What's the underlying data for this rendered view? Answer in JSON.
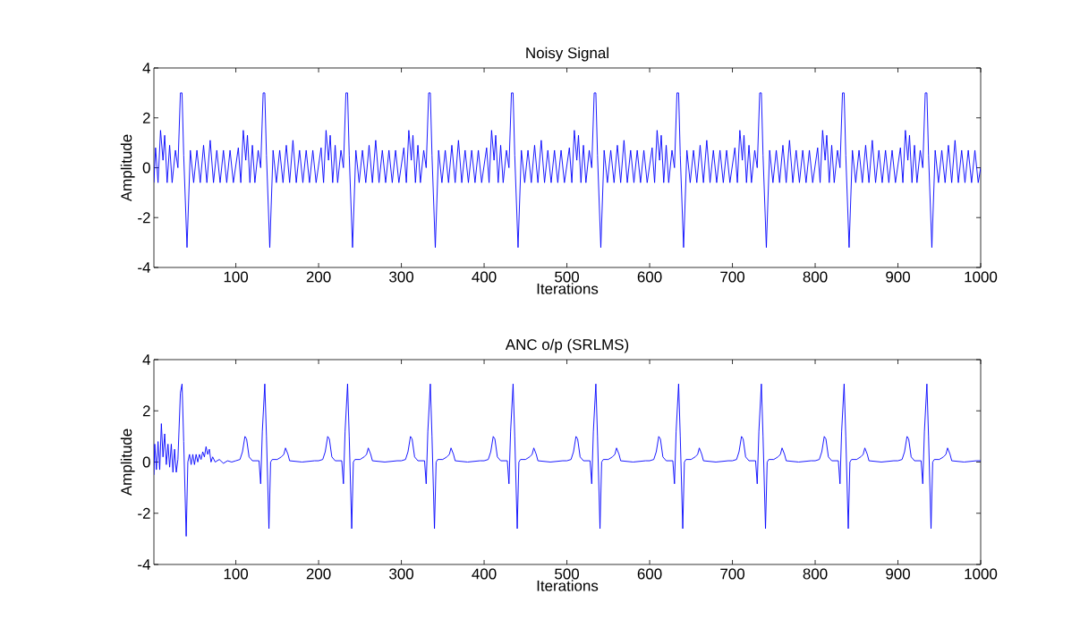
{
  "chart_data": [
    {
      "type": "line",
      "title": "Noisy Signal",
      "xlabel": "Iterations",
      "ylabel": "Amplitude",
      "color": "#0000ff",
      "xlim": [
        1,
        1000
      ],
      "ylim": [
        -4,
        4
      ],
      "xticks": [
        100,
        200,
        300,
        400,
        500,
        600,
        700,
        800,
        900,
        1000
      ],
      "yticks": [
        -4,
        -2,
        0,
        2,
        4
      ],
      "x": [
        1,
        3,
        6,
        9,
        12,
        14,
        17,
        20,
        23,
        27,
        30,
        33,
        35,
        37,
        41,
        45,
        49,
        53,
        57,
        61,
        65,
        69,
        73,
        77,
        81,
        85,
        89,
        93,
        97,
        103,
        106,
        109,
        112,
        114,
        117,
        120,
        123,
        127,
        130,
        133,
        135,
        137,
        141,
        145,
        149,
        153,
        157,
        161,
        165,
        169,
        173,
        177,
        181,
        185,
        189,
        193,
        197,
        203,
        206,
        209,
        212,
        214,
        217,
        220,
        223,
        227,
        230,
        233,
        235,
        237,
        241,
        245,
        249,
        253,
        257,
        261,
        265,
        269,
        273,
        277,
        281,
        285,
        289,
        293,
        297,
        303,
        306,
        309,
        312,
        314,
        317,
        320,
        323,
        327,
        330,
        333,
        335,
        337,
        341,
        345,
        349,
        353,
        357,
        361,
        365,
        369,
        373,
        377,
        381,
        385,
        389,
        393,
        397,
        403,
        406,
        409,
        412,
        414,
        417,
        420,
        423,
        427,
        430,
        433,
        435,
        437,
        441,
        445,
        449,
        453,
        457,
        461,
        465,
        469,
        473,
        477,
        481,
        485,
        489,
        493,
        497,
        503,
        506,
        509,
        512,
        514,
        517,
        520,
        523,
        527,
        530,
        533,
        535,
        537,
        541,
        545,
        549,
        553,
        557,
        561,
        565,
        569,
        573,
        577,
        581,
        585,
        589,
        593,
        597,
        603,
        606,
        609,
        612,
        614,
        617,
        620,
        623,
        627,
        630,
        633,
        635,
        637,
        641,
        645,
        649,
        653,
        657,
        661,
        665,
        669,
        673,
        677,
        681,
        685,
        689,
        693,
        697,
        703,
        706,
        709,
        712,
        714,
        717,
        720,
        723,
        727,
        730,
        733,
        735,
        737,
        741,
        745,
        749,
        753,
        757,
        761,
        765,
        769,
        773,
        777,
        781,
        785,
        789,
        793,
        797,
        803,
        806,
        809,
        812,
        814,
        817,
        820,
        823,
        827,
        830,
        833,
        835,
        837,
        841,
        845,
        849,
        853,
        857,
        861,
        865,
        869,
        873,
        877,
        881,
        885,
        889,
        893,
        897,
        903,
        906,
        909,
        912,
        914,
        917,
        920,
        923,
        927,
        930,
        933,
        935,
        937,
        941,
        945,
        949,
        953,
        957,
        961,
        965,
        969,
        973,
        977,
        981,
        985,
        989,
        993,
        997,
        1000
      ],
      "values": [
        -0.6,
        0.8,
        -0.6,
        1.5,
        0.3,
        1.3,
        -0.6,
        0.9,
        -0.6,
        0.7,
        0.0,
        3.0,
        3.0,
        0.5,
        -3.2,
        0.7,
        -0.6,
        0.7,
        -0.6,
        0.9,
        -0.6,
        1.1,
        -0.6,
        0.7,
        -0.6,
        0.7,
        -0.6,
        0.7,
        -0.6,
        0.8,
        -0.6,
        1.5,
        0.3,
        1.3,
        -0.6,
        0.9,
        -0.6,
        0.7,
        0.0,
        3.0,
        3.0,
        0.5,
        -3.2,
        0.7,
        -0.6,
        0.7,
        -0.6,
        0.9,
        -0.6,
        1.1,
        -0.6,
        0.7,
        -0.6,
        0.7,
        -0.6,
        0.7,
        -0.6,
        0.8,
        -0.6,
        1.5,
        0.3,
        1.3,
        -0.6,
        0.9,
        -0.6,
        0.7,
        0.0,
        3.0,
        3.0,
        0.5,
        -3.2,
        0.7,
        -0.6,
        0.7,
        -0.6,
        0.9,
        -0.6,
        1.1,
        -0.6,
        0.7,
        -0.6,
        0.7,
        -0.6,
        0.7,
        -0.6,
        0.8,
        -0.6,
        1.5,
        0.3,
        1.3,
        -0.6,
        0.9,
        -0.6,
        0.7,
        0.0,
        3.0,
        3.0,
        0.5,
        -3.2,
        0.7,
        -0.6,
        0.7,
        -0.6,
        0.9,
        -0.6,
        1.1,
        -0.6,
        0.7,
        -0.6,
        0.7,
        -0.6,
        0.7,
        -0.6,
        0.8,
        -0.6,
        1.5,
        0.3,
        1.3,
        -0.6,
        0.9,
        -0.6,
        0.7,
        0.0,
        3.0,
        3.0,
        0.5,
        -3.2,
        0.7,
        -0.6,
        0.7,
        -0.6,
        0.9,
        -0.6,
        1.1,
        -0.6,
        0.7,
        -0.6,
        0.7,
        -0.6,
        0.7,
        -0.6,
        0.8,
        -0.6,
        1.5,
        0.3,
        1.3,
        -0.6,
        0.9,
        -0.6,
        0.7,
        0.0,
        3.0,
        3.0,
        0.5,
        -3.2,
        0.7,
        -0.6,
        0.7,
        -0.6,
        0.9,
        -0.6,
        1.1,
        -0.6,
        0.7,
        -0.6,
        0.7,
        -0.6,
        0.7,
        -0.6,
        0.8,
        -0.6,
        1.5,
        0.3,
        1.3,
        -0.6,
        0.9,
        -0.6,
        0.7,
        0.0,
        3.0,
        3.0,
        0.5,
        -3.2,
        0.7,
        -0.6,
        0.7,
        -0.6,
        0.9,
        -0.6,
        1.1,
        -0.6,
        0.7,
        -0.6,
        0.7,
        -0.6,
        0.7,
        -0.6,
        0.8,
        -0.6,
        1.5,
        0.3,
        1.3,
        -0.6,
        0.9,
        -0.6,
        0.7,
        0.0,
        3.0,
        3.0,
        0.5,
        -3.2,
        0.7,
        -0.6,
        0.7,
        -0.6,
        0.9,
        -0.6,
        1.1,
        -0.6,
        0.7,
        -0.6,
        0.7,
        -0.6,
        0.7,
        -0.6,
        0.8,
        -0.6,
        1.5,
        0.3,
        1.3,
        -0.6,
        0.9,
        -0.6,
        0.7,
        0.0,
        3.0,
        3.0,
        0.5,
        -3.2,
        0.7,
        -0.6,
        0.7,
        -0.6,
        0.9,
        -0.6,
        1.1,
        -0.6,
        0.7,
        -0.6,
        0.7,
        -0.6,
        0.7,
        -0.6,
        0.8,
        -0.6,
        1.5,
        0.3,
        1.3,
        -0.6,
        0.9,
        -0.6,
        0.7,
        0.0,
        3.0,
        3.0,
        0.5,
        -3.2,
        0.7,
        -0.6,
        0.7,
        -0.6,
        0.9,
        -0.6,
        1.1,
        -0.6,
        0.7,
        -0.6,
        0.7,
        -0.6,
        0.7,
        -0.6,
        0.0
      ]
    },
    {
      "type": "line",
      "title": "ANC o/p (SRLMS)",
      "xlabel": "Iterations",
      "ylabel": "Amplitude",
      "color": "#0000ff",
      "xlim": [
        1,
        1000
      ],
      "ylim": [
        -4,
        4
      ],
      "xticks": [
        100,
        200,
        300,
        400,
        500,
        600,
        700,
        800,
        900,
        1000
      ],
      "yticks": [
        -4,
        -2,
        0,
        2,
        4
      ],
      "x": [
        1,
        2,
        4,
        6,
        8,
        10,
        12,
        14,
        16,
        18,
        20,
        22,
        24,
        26,
        28,
        30,
        33,
        35,
        37,
        40,
        42,
        44,
        46,
        48,
        50,
        52,
        54,
        56,
        58,
        60,
        62,
        64,
        66,
        68,
        70,
        72,
        75,
        80,
        85,
        90,
        95,
        100,
        105,
        108,
        111,
        113,
        116,
        120,
        128,
        130,
        132,
        135,
        137,
        140,
        142,
        144,
        150,
        155,
        158,
        160,
        163,
        165,
        180,
        195,
        200,
        205,
        208,
        211,
        213,
        216,
        220,
        228,
        230,
        232,
        235,
        237,
        240,
        242,
        244,
        250,
        255,
        258,
        260,
        263,
        265,
        280,
        295,
        300,
        305,
        308,
        311,
        313,
        316,
        320,
        328,
        330,
        332,
        335,
        337,
        340,
        342,
        344,
        350,
        355,
        358,
        360,
        363,
        365,
        380,
        395,
        400,
        405,
        408,
        411,
        413,
        416,
        420,
        428,
        430,
        432,
        435,
        437,
        440,
        442,
        444,
        450,
        455,
        458,
        460,
        463,
        465,
        480,
        495,
        500,
        505,
        508,
        511,
        513,
        516,
        520,
        528,
        530,
        532,
        535,
        537,
        540,
        542,
        544,
        550,
        555,
        558,
        560,
        563,
        565,
        580,
        595,
        600,
        605,
        608,
        611,
        613,
        616,
        620,
        628,
        630,
        632,
        635,
        637,
        640,
        642,
        644,
        650,
        655,
        658,
        660,
        663,
        665,
        680,
        695,
        700,
        705,
        708,
        711,
        713,
        716,
        720,
        728,
        730,
        732,
        735,
        737,
        740,
        742,
        744,
        750,
        755,
        758,
        760,
        763,
        765,
        780,
        795,
        800,
        805,
        808,
        811,
        813,
        816,
        820,
        828,
        830,
        832,
        835,
        837,
        840,
        842,
        844,
        850,
        855,
        858,
        860,
        863,
        865,
        880,
        895,
        900,
        905,
        908,
        911,
        913,
        916,
        920,
        928,
        930,
        932,
        935,
        937,
        940,
        942,
        944,
        950,
        955,
        958,
        960,
        963,
        965,
        980,
        995,
        1000
      ],
      "values": [
        -0.5,
        0.7,
        -0.3,
        0.8,
        -0.3,
        1.5,
        0.2,
        1.1,
        -0.1,
        0.7,
        -0.2,
        0.7,
        -0.4,
        0.5,
        -0.4,
        0.1,
        2.7,
        3.05,
        0.8,
        -2.9,
        0.0,
        0.3,
        -0.1,
        0.3,
        -0.1,
        0.3,
        0.0,
        0.3,
        0.1,
        0.4,
        0.2,
        0.6,
        0.3,
        0.5,
        0.0,
        0.2,
        0.0,
        0.1,
        -0.05,
        0.05,
        0.0,
        0.05,
        0.1,
        0.4,
        1.0,
        0.9,
        0.2,
        0.05,
        0.05,
        -0.85,
        1.2,
        3.05,
        1.0,
        -2.6,
        0.0,
        0.1,
        0.1,
        0.2,
        0.3,
        0.55,
        0.3,
        0.05,
        0.0,
        0.05,
        0.05,
        0.1,
        0.4,
        1.0,
        0.9,
        0.2,
        0.05,
        0.05,
        -0.85,
        1.2,
        3.05,
        1.0,
        -2.6,
        0.0,
        0.1,
        0.1,
        0.2,
        0.3,
        0.55,
        0.3,
        0.05,
        0.0,
        0.05,
        0.05,
        0.1,
        0.4,
        1.0,
        0.9,
        0.2,
        0.05,
        0.05,
        -0.85,
        1.2,
        3.05,
        1.0,
        -2.6,
        0.0,
        0.1,
        0.1,
        0.2,
        0.3,
        0.55,
        0.3,
        0.05,
        0.0,
        0.05,
        0.05,
        0.1,
        0.4,
        1.0,
        0.9,
        0.2,
        0.05,
        0.05,
        -0.85,
        1.2,
        3.05,
        1.0,
        -2.6,
        0.0,
        0.1,
        0.1,
        0.2,
        0.3,
        0.55,
        0.3,
        0.05,
        0.0,
        0.05,
        0.05,
        0.1,
        0.4,
        1.0,
        0.9,
        0.2,
        0.05,
        0.05,
        -0.85,
        1.2,
        3.05,
        1.0,
        -2.6,
        0.0,
        0.1,
        0.1,
        0.2,
        0.3,
        0.55,
        0.3,
        0.05,
        0.0,
        0.05,
        0.05,
        0.1,
        0.4,
        1.0,
        0.9,
        0.2,
        0.05,
        0.05,
        -0.85,
        1.2,
        3.05,
        1.0,
        -2.6,
        0.0,
        0.1,
        0.1,
        0.2,
        0.3,
        0.55,
        0.3,
        0.05,
        0.0,
        0.05,
        0.05,
        0.1,
        0.4,
        1.0,
        0.9,
        0.2,
        0.05,
        0.05,
        -0.85,
        1.2,
        3.05,
        1.0,
        -2.6,
        0.0,
        0.1,
        0.1,
        0.2,
        0.3,
        0.55,
        0.3,
        0.05,
        0.0,
        0.05,
        0.05,
        0.1,
        0.4,
        1.0,
        0.9,
        0.2,
        0.05,
        0.05,
        -0.85,
        1.2,
        3.05,
        1.0,
        -2.6,
        0.0,
        0.1,
        0.1,
        0.2,
        0.3,
        0.55,
        0.3,
        0.05,
        0.0,
        0.05,
        0.05,
        0.1,
        0.4,
        1.0,
        0.9,
        0.2,
        0.05,
        0.05,
        -0.85,
        1.2,
        3.05,
        1.0,
        -2.6,
        0.0,
        0.1,
        0.1,
        0.2,
        0.3,
        0.55,
        0.3,
        0.05,
        0.0,
        0.05,
        0.05
      ]
    }
  ]
}
